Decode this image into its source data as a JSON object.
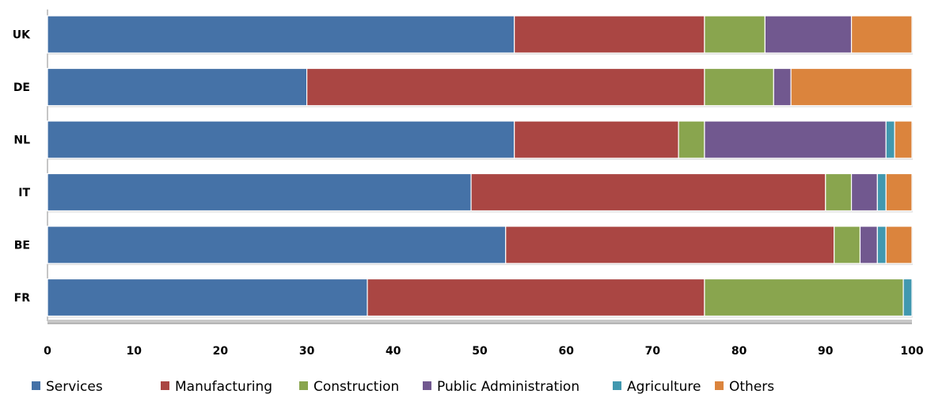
{
  "chart_data": {
    "type": "bar",
    "orientation": "horizontal",
    "stacked": true,
    "title": "",
    "xlabel": "",
    "ylabel": "",
    "xlim": [
      0,
      100
    ],
    "xticks": [
      "0",
      "10",
      "20",
      "30",
      "40",
      "50",
      "60",
      "70",
      "80",
      "90",
      "100"
    ],
    "categories": [
      "UK",
      "DE",
      "NL",
      "IT",
      "BE",
      "FR"
    ],
    "grid": false,
    "legend_position": "bottom",
    "series": [
      {
        "name": "Services",
        "color": "#4572A7",
        "values": [
          54,
          30,
          54,
          49,
          53,
          37
        ]
      },
      {
        "name": "Manufacturing",
        "color": "#AA4643",
        "values": [
          22,
          46,
          19,
          41,
          38,
          39
        ]
      },
      {
        "name": "Construction",
        "color": "#89A54E",
        "values": [
          7,
          8,
          3,
          3,
          3,
          23
        ]
      },
      {
        "name": "Public Administration",
        "color": "#71588F",
        "values": [
          10,
          2,
          21,
          3,
          2,
          0
        ]
      },
      {
        "name": "Agriculture",
        "color": "#4198AF",
        "values": [
          0,
          0,
          1,
          1,
          1,
          1
        ]
      },
      {
        "name": "Others",
        "color": "#DB843D",
        "values": [
          7,
          14,
          2,
          3,
          3,
          0
        ]
      }
    ]
  }
}
